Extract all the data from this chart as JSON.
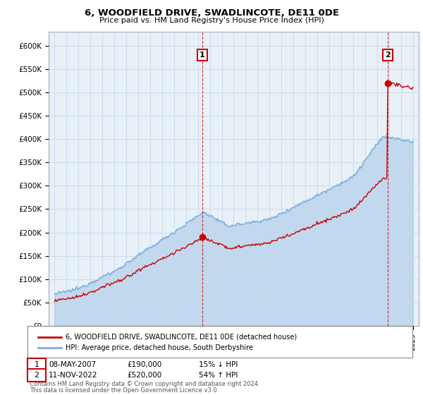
{
  "title": "6, WOODFIELD DRIVE, SWADLINCOTE, DE11 0DE",
  "subtitle": "Price paid vs. HM Land Registry's House Price Index (HPI)",
  "ylabel_ticks": [
    "£0",
    "£50K",
    "£100K",
    "£150K",
    "£200K",
    "£250K",
    "£300K",
    "£350K",
    "£400K",
    "£450K",
    "£500K",
    "£550K",
    "£600K"
  ],
  "ylim": [
    0,
    630000
  ],
  "xlim_start": 1994.5,
  "xlim_end": 2025.5,
  "sale1_date": 2007.35,
  "sale1_price": 190000,
  "sale2_date": 2022.87,
  "sale2_price": 520000,
  "legend_line1": "6, WOODFIELD DRIVE, SWADLINCOTE, DE11 0DE (detached house)",
  "legend_line2": "HPI: Average price, detached house, South Derbyshire",
  "table_row1": [
    "1",
    "08-MAY-2007",
    "£190,000",
    "15% ↓ HPI"
  ],
  "table_row2": [
    "2",
    "11-NOV-2022",
    "£520,000",
    "54% ↑ HPI"
  ],
  "footnote1": "Contains HM Land Registry data © Crown copyright and database right 2024.",
  "footnote2": "This data is licensed under the Open Government Licence v3.0.",
  "red_color": "#cc0000",
  "blue_color": "#7aaddc",
  "fill_color": "#ddeeff",
  "background_color": "#ffffff",
  "plot_bg_color": "#e8f0f8",
  "grid_color": "#c8d8e8"
}
